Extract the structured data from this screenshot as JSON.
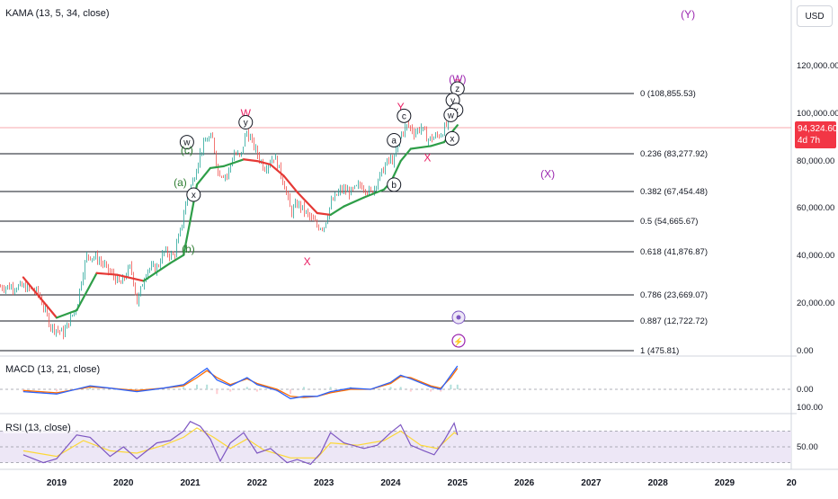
{
  "chart_data": {
    "type": "line",
    "symbol_currency": "USD",
    "panes": {
      "price": {
        "indicator_label": "KAMA (13, 5, 34, close)",
        "y_scale": "log",
        "y_ticks": [
          {
            "value": 120000,
            "label": "120,000.00"
          },
          {
            "value": 100000,
            "label": "100,000.00"
          },
          {
            "value": 80000,
            "label": "80,000.00"
          },
          {
            "value": 60000,
            "label": "60,000.00"
          },
          {
            "value": 40000,
            "label": "40,000.00"
          },
          {
            "value": 20000,
            "label": "20,000.00"
          },
          {
            "value": 0,
            "label": "0.00"
          }
        ],
        "last_price": {
          "value": 94324.6,
          "label": "94,324.60",
          "countdown": "4d 7h"
        },
        "fib_levels": [
          {
            "value": 108855.53,
            "label": "0 (108,855.53)"
          },
          {
            "value": 83277.92,
            "label": "0.236 (83,277.92)"
          },
          {
            "value": 67454.48,
            "label": "0.382 (67,454.48)"
          },
          {
            "value": 54665.67,
            "label": "0.5 (54,665.67)"
          },
          {
            "value": 41876.87,
            "label": "0.618 (41,876.87)"
          },
          {
            "value": 23669.07,
            "label": "0.786 (23,669.07)"
          },
          {
            "value": 12722.72,
            "label": "0.887 (12,722.72)"
          },
          {
            "value": 475.81,
            "label": "1 (475.81)"
          }
        ],
        "candles_btc": [
          [
            2018.5,
            7000
          ],
          [
            2018.7,
            6500
          ],
          [
            2018.9,
            4000
          ],
          [
            2019.1,
            3600
          ],
          [
            2019.3,
            5300
          ],
          [
            2019.45,
            11000
          ],
          [
            2019.6,
            10500
          ],
          [
            2019.8,
            8500
          ],
          [
            2019.95,
            7200
          ],
          [
            2020.1,
            9300
          ],
          [
            2020.2,
            5500
          ],
          [
            2020.35,
            9000
          ],
          [
            2020.5,
            9200
          ],
          [
            2020.6,
            11500
          ],
          [
            2020.75,
            10800
          ],
          [
            2020.85,
            15500
          ],
          [
            2020.95,
            25000
          ],
          [
            2021.05,
            33000
          ],
          [
            2021.15,
            48000
          ],
          [
            2021.25,
            58000
          ],
          [
            2021.33,
            57000
          ],
          [
            2021.4,
            36000
          ],
          [
            2021.55,
            34000
          ],
          [
            2021.65,
            47000
          ],
          [
            2021.75,
            44000
          ],
          [
            2021.83,
            64000
          ],
          [
            2021.9,
            57000
          ],
          [
            2022.0,
            46000
          ],
          [
            2022.1,
            38000
          ],
          [
            2022.25,
            45000
          ],
          [
            2022.4,
            30000
          ],
          [
            2022.5,
            20000
          ],
          [
            2022.6,
            23000
          ],
          [
            2022.75,
            19500
          ],
          [
            2022.9,
            16500
          ],
          [
            2023.0,
            16600
          ],
          [
            2023.1,
            23000
          ],
          [
            2023.25,
            28000
          ],
          [
            2023.4,
            27000
          ],
          [
            2023.55,
            30000
          ],
          [
            2023.7,
            26500
          ],
          [
            2023.85,
            35000
          ],
          [
            2023.95,
            42000
          ],
          [
            2024.05,
            43000
          ],
          [
            2024.15,
            62000
          ],
          [
            2024.25,
            70000
          ],
          [
            2024.35,
            63000
          ],
          [
            2024.45,
            68000
          ],
          [
            2024.55,
            57000
          ],
          [
            2024.65,
            59000
          ],
          [
            2024.75,
            62000
          ],
          [
            2024.85,
            72000
          ],
          [
            2024.9,
            90000
          ],
          [
            2024.95,
            98000
          ],
          [
            2025.0,
            94324.6
          ]
        ],
        "kama": [
          [
            2018.5,
            8000
          ],
          [
            2019.0,
            4500
          ],
          [
            2019.3,
            5000
          ],
          [
            2019.6,
            8500
          ],
          [
            2019.9,
            8300
          ],
          [
            2020.3,
            7600
          ],
          [
            2020.7,
            9800
          ],
          [
            2020.9,
            11000
          ],
          [
            2021.0,
            18000
          ],
          [
            2021.1,
            30000
          ],
          [
            2021.3,
            38000
          ],
          [
            2021.5,
            39000
          ],
          [
            2021.8,
            43000
          ],
          [
            2022.0,
            42000
          ],
          [
            2022.2,
            40000
          ],
          [
            2022.4,
            34000
          ],
          [
            2022.6,
            27000
          ],
          [
            2022.9,
            20000
          ],
          [
            2023.1,
            19500
          ],
          [
            2023.3,
            22000
          ],
          [
            2023.6,
            25000
          ],
          [
            2023.9,
            28000
          ],
          [
            2024.0,
            31000
          ],
          [
            2024.15,
            42000
          ],
          [
            2024.3,
            50000
          ],
          [
            2024.6,
            52000
          ],
          [
            2024.8,
            55000
          ],
          [
            2024.95,
            66000
          ],
          [
            2025.0,
            70000
          ]
        ],
        "wave_labels": [
          {
            "text": "(W)",
            "x": 2025.0,
            "y": 135000,
            "color": "#9c27b0",
            "circled": false
          },
          {
            "text": "Z",
            "x": 2025.0,
            "y": 127000,
            "color": "#e91e63",
            "circled": false
          },
          {
            "text": "z",
            "x": 2025.0,
            "y": 118000,
            "color": "#131722",
            "circled": true
          },
          {
            "text": "y",
            "x": 2024.93,
            "y": 100000,
            "color": "#131722",
            "circled": true
          },
          {
            "text": "x",
            "x": 2024.98,
            "y": 87000,
            "color": "#131722",
            "circled": true
          },
          {
            "text": "w",
            "x": 2024.9,
            "y": 81000,
            "color": "#131722",
            "circled": true
          },
          {
            "text": "x",
            "x": 2024.92,
            "y": 58000,
            "color": "#131722",
            "circled": true
          },
          {
            "text": "Y",
            "x": 2024.15,
            "y": 91000,
            "color": "#e91e63",
            "circled": false
          },
          {
            "text": "c",
            "x": 2024.2,
            "y": 80000,
            "color": "#131722",
            "circled": true
          },
          {
            "text": "a",
            "x": 2024.05,
            "y": 56500,
            "color": "#131722",
            "circled": true
          },
          {
            "text": "X",
            "x": 2024.55,
            "y": 44000,
            "color": "#e91e63",
            "circled": false
          },
          {
            "text": "b",
            "x": 2024.05,
            "y": 30000,
            "color": "#131722",
            "circled": true
          },
          {
            "text": "W",
            "x": 2021.83,
            "y": 83000,
            "color": "#e91e63",
            "circled": false
          },
          {
            "text": "y",
            "x": 2021.83,
            "y": 73000,
            "color": "#131722",
            "circled": true
          },
          {
            "text": "w",
            "x": 2020.95,
            "y": 55000,
            "color": "#131722",
            "circled": true
          },
          {
            "text": "(c)",
            "x": 2020.95,
            "y": 49000,
            "color": "#2e7d32",
            "circled": false
          },
          {
            "text": "(a)",
            "x": 2020.85,
            "y": 31000,
            "color": "#2e7d32",
            "circled": false
          },
          {
            "text": "x",
            "x": 2021.05,
            "y": 26000,
            "color": "#131722",
            "circled": true
          },
          {
            "text": "(b)",
            "x": 2020.97,
            "y": 12000,
            "color": "#2e7d32",
            "circled": false
          },
          {
            "text": "X",
            "x": 2022.75,
            "y": 10000,
            "color": "#e91e63",
            "circled": false
          },
          {
            "text": "(X)",
            "x": 2026.35,
            "y": 35000,
            "color": "#9c27b0",
            "circled": false
          },
          {
            "text": "(Y)",
            "x": 2028.45,
            "y": 480000,
            "color": "#9c27b0",
            "circled": false
          }
        ]
      },
      "macd": {
        "indicator_label": "MACD (13, 21, close)",
        "y_ticks": [
          {
            "value": 0,
            "label": "0.00"
          }
        ],
        "macd_line": [
          [
            2018.5,
            -2
          ],
          [
            2019.0,
            -4
          ],
          [
            2019.5,
            3
          ],
          [
            2019.8,
            1
          ],
          [
            2020.2,
            -2
          ],
          [
            2020.6,
            1
          ],
          [
            2020.9,
            4
          ],
          [
            2021.1,
            12
          ],
          [
            2021.25,
            18
          ],
          [
            2021.4,
            8
          ],
          [
            2021.6,
            3
          ],
          [
            2021.85,
            10
          ],
          [
            2022.0,
            4
          ],
          [
            2022.3,
            -1
          ],
          [
            2022.5,
            -8
          ],
          [
            2022.7,
            -6
          ],
          [
            2022.9,
            -6
          ],
          [
            2023.1,
            -2
          ],
          [
            2023.4,
            1
          ],
          [
            2023.7,
            0
          ],
          [
            2024.0,
            6
          ],
          [
            2024.15,
            12
          ],
          [
            2024.3,
            9
          ],
          [
            2024.6,
            2
          ],
          [
            2024.75,
            0
          ],
          [
            2024.9,
            12
          ],
          [
            2025.0,
            20
          ]
        ],
        "signal_line": [
          [
            2018.5,
            -1
          ],
          [
            2019.0,
            -3
          ],
          [
            2019.5,
            2
          ],
          [
            2019.8,
            1
          ],
          [
            2020.2,
            -1
          ],
          [
            2020.6,
            1
          ],
          [
            2020.9,
            3
          ],
          [
            2021.1,
            10
          ],
          [
            2021.25,
            16
          ],
          [
            2021.4,
            10
          ],
          [
            2021.6,
            4
          ],
          [
            2021.85,
            9
          ],
          [
            2022.0,
            5
          ],
          [
            2022.3,
            0
          ],
          [
            2022.5,
            -6
          ],
          [
            2022.7,
            -7
          ],
          [
            2022.9,
            -6
          ],
          [
            2023.1,
            -3
          ],
          [
            2023.4,
            0
          ],
          [
            2023.7,
            0
          ],
          [
            2024.0,
            5
          ],
          [
            2024.15,
            11
          ],
          [
            2024.3,
            10
          ],
          [
            2024.6,
            3
          ],
          [
            2024.75,
            1
          ],
          [
            2024.9,
            10
          ],
          [
            2025.0,
            18
          ]
        ]
      },
      "rsi": {
        "indicator_label": "RSI (13, close)",
        "y_ticks": [
          {
            "value": 100,
            "label": "100.00"
          },
          {
            "value": 50,
            "label": "50.00"
          }
        ],
        "band": [
          30,
          70
        ],
        "rsi_line": [
          [
            2018.5,
            40
          ],
          [
            2018.8,
            30
          ],
          [
            2019.0,
            35
          ],
          [
            2019.3,
            65
          ],
          [
            2019.5,
            62
          ],
          [
            2019.8,
            38
          ],
          [
            2020.0,
            50
          ],
          [
            2020.2,
            35
          ],
          [
            2020.5,
            55
          ],
          [
            2020.7,
            58
          ],
          [
            2020.9,
            70
          ],
          [
            2021.0,
            82
          ],
          [
            2021.15,
            76
          ],
          [
            2021.3,
            60
          ],
          [
            2021.45,
            32
          ],
          [
            2021.6,
            55
          ],
          [
            2021.8,
            68
          ],
          [
            2022.0,
            42
          ],
          [
            2022.2,
            48
          ],
          [
            2022.45,
            30
          ],
          [
            2022.6,
            34
          ],
          [
            2022.8,
            28
          ],
          [
            2022.95,
            42
          ],
          [
            2023.1,
            68
          ],
          [
            2023.3,
            55
          ],
          [
            2023.6,
            48
          ],
          [
            2023.8,
            52
          ],
          [
            2024.0,
            68
          ],
          [
            2024.15,
            78
          ],
          [
            2024.3,
            52
          ],
          [
            2024.5,
            45
          ],
          [
            2024.65,
            40
          ],
          [
            2024.8,
            58
          ],
          [
            2024.95,
            80
          ],
          [
            2025.0,
            65
          ]
        ],
        "rsi_ma": [
          [
            2018.5,
            45
          ],
          [
            2019.0,
            38
          ],
          [
            2019.4,
            58
          ],
          [
            2019.8,
            45
          ],
          [
            2020.2,
            42
          ],
          [
            2020.6,
            52
          ],
          [
            2020.9,
            62
          ],
          [
            2021.1,
            74
          ],
          [
            2021.35,
            62
          ],
          [
            2021.6,
            48
          ],
          [
            2021.85,
            60
          ],
          [
            2022.1,
            46
          ],
          [
            2022.5,
            36
          ],
          [
            2022.9,
            36
          ],
          [
            2023.1,
            55
          ],
          [
            2023.5,
            52
          ],
          [
            2023.9,
            58
          ],
          [
            2024.15,
            70
          ],
          [
            2024.45,
            52
          ],
          [
            2024.7,
            48
          ],
          [
            2024.95,
            68
          ],
          [
            2025.0,
            66
          ]
        ]
      }
    },
    "x_ticks": [
      "2019",
      "2020",
      "2021",
      "2022",
      "2023",
      "2024",
      "2025",
      "2026",
      "2027",
      "2028",
      "2029",
      "20"
    ],
    "colors": {
      "kama": "#2e9e48",
      "kama_down": "#e53935",
      "candle_up": "#26a69a",
      "candle_down": "#ef5350",
      "macd": "#2962ff",
      "signal": "#ff6d00",
      "rsi": "#7e57c2",
      "rsi_ma": "#fdd835",
      "rsi_band": "#ede7f6",
      "last_price_line": "#f7a9ad",
      "fib_line": "#131722"
    }
  }
}
